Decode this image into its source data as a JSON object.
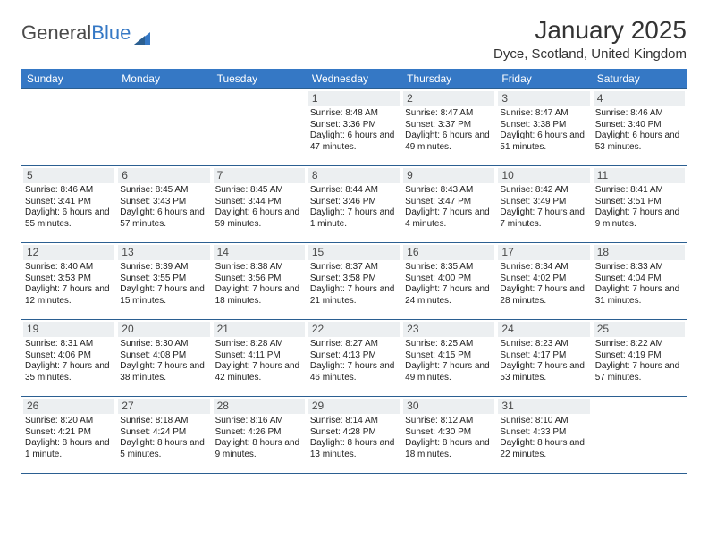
{
  "brand": {
    "text_gray": "General",
    "text_blue": "Blue"
  },
  "title": "January 2025",
  "location": "Dyce, Scotland, United Kingdom",
  "colors": {
    "header_bg": "#3578c5",
    "header_text": "#ffffff",
    "rule": "#2b5f91",
    "daynum_bg": "#eceff1",
    "page_bg": "#ffffff",
    "body_text": "#222222",
    "title_text": "#333333"
  },
  "fonts": {
    "title_pt": 28,
    "location_pt": 15,
    "dow_pt": 12,
    "daynum_pt": 12,
    "body_pt": 10
  },
  "calendar": {
    "type": "table",
    "days_of_week": [
      "Sunday",
      "Monday",
      "Tuesday",
      "Wednesday",
      "Thursday",
      "Friday",
      "Saturday"
    ],
    "leading_blanks": 3,
    "days": [
      {
        "n": 1,
        "sr": "8:48 AM",
        "ss": "3:36 PM",
        "dl": "6 hours and 47 minutes."
      },
      {
        "n": 2,
        "sr": "8:47 AM",
        "ss": "3:37 PM",
        "dl": "6 hours and 49 minutes."
      },
      {
        "n": 3,
        "sr": "8:47 AM",
        "ss": "3:38 PM",
        "dl": "6 hours and 51 minutes."
      },
      {
        "n": 4,
        "sr": "8:46 AM",
        "ss": "3:40 PM",
        "dl": "6 hours and 53 minutes."
      },
      {
        "n": 5,
        "sr": "8:46 AM",
        "ss": "3:41 PM",
        "dl": "6 hours and 55 minutes."
      },
      {
        "n": 6,
        "sr": "8:45 AM",
        "ss": "3:43 PM",
        "dl": "6 hours and 57 minutes."
      },
      {
        "n": 7,
        "sr": "8:45 AM",
        "ss": "3:44 PM",
        "dl": "6 hours and 59 minutes."
      },
      {
        "n": 8,
        "sr": "8:44 AM",
        "ss": "3:46 PM",
        "dl": "7 hours and 1 minute."
      },
      {
        "n": 9,
        "sr": "8:43 AM",
        "ss": "3:47 PM",
        "dl": "7 hours and 4 minutes."
      },
      {
        "n": 10,
        "sr": "8:42 AM",
        "ss": "3:49 PM",
        "dl": "7 hours and 7 minutes."
      },
      {
        "n": 11,
        "sr": "8:41 AM",
        "ss": "3:51 PM",
        "dl": "7 hours and 9 minutes."
      },
      {
        "n": 12,
        "sr": "8:40 AM",
        "ss": "3:53 PM",
        "dl": "7 hours and 12 minutes."
      },
      {
        "n": 13,
        "sr": "8:39 AM",
        "ss": "3:55 PM",
        "dl": "7 hours and 15 minutes."
      },
      {
        "n": 14,
        "sr": "8:38 AM",
        "ss": "3:56 PM",
        "dl": "7 hours and 18 minutes."
      },
      {
        "n": 15,
        "sr": "8:37 AM",
        "ss": "3:58 PM",
        "dl": "7 hours and 21 minutes."
      },
      {
        "n": 16,
        "sr": "8:35 AM",
        "ss": "4:00 PM",
        "dl": "7 hours and 24 minutes."
      },
      {
        "n": 17,
        "sr": "8:34 AM",
        "ss": "4:02 PM",
        "dl": "7 hours and 28 minutes."
      },
      {
        "n": 18,
        "sr": "8:33 AM",
        "ss": "4:04 PM",
        "dl": "7 hours and 31 minutes."
      },
      {
        "n": 19,
        "sr": "8:31 AM",
        "ss": "4:06 PM",
        "dl": "7 hours and 35 minutes."
      },
      {
        "n": 20,
        "sr": "8:30 AM",
        "ss": "4:08 PM",
        "dl": "7 hours and 38 minutes."
      },
      {
        "n": 21,
        "sr": "8:28 AM",
        "ss": "4:11 PM",
        "dl": "7 hours and 42 minutes."
      },
      {
        "n": 22,
        "sr": "8:27 AM",
        "ss": "4:13 PM",
        "dl": "7 hours and 46 minutes."
      },
      {
        "n": 23,
        "sr": "8:25 AM",
        "ss": "4:15 PM",
        "dl": "7 hours and 49 minutes."
      },
      {
        "n": 24,
        "sr": "8:23 AM",
        "ss": "4:17 PM",
        "dl": "7 hours and 53 minutes."
      },
      {
        "n": 25,
        "sr": "8:22 AM",
        "ss": "4:19 PM",
        "dl": "7 hours and 57 minutes."
      },
      {
        "n": 26,
        "sr": "8:20 AM",
        "ss": "4:21 PM",
        "dl": "8 hours and 1 minute."
      },
      {
        "n": 27,
        "sr": "8:18 AM",
        "ss": "4:24 PM",
        "dl": "8 hours and 5 minutes."
      },
      {
        "n": 28,
        "sr": "8:16 AM",
        "ss": "4:26 PM",
        "dl": "8 hours and 9 minutes."
      },
      {
        "n": 29,
        "sr": "8:14 AM",
        "ss": "4:28 PM",
        "dl": "8 hours and 13 minutes."
      },
      {
        "n": 30,
        "sr": "8:12 AM",
        "ss": "4:30 PM",
        "dl": "8 hours and 18 minutes."
      },
      {
        "n": 31,
        "sr": "8:10 AM",
        "ss": "4:33 PM",
        "dl": "8 hours and 22 minutes."
      }
    ],
    "labels": {
      "sunrise": "Sunrise:",
      "sunset": "Sunset:",
      "daylight": "Daylight:"
    }
  }
}
